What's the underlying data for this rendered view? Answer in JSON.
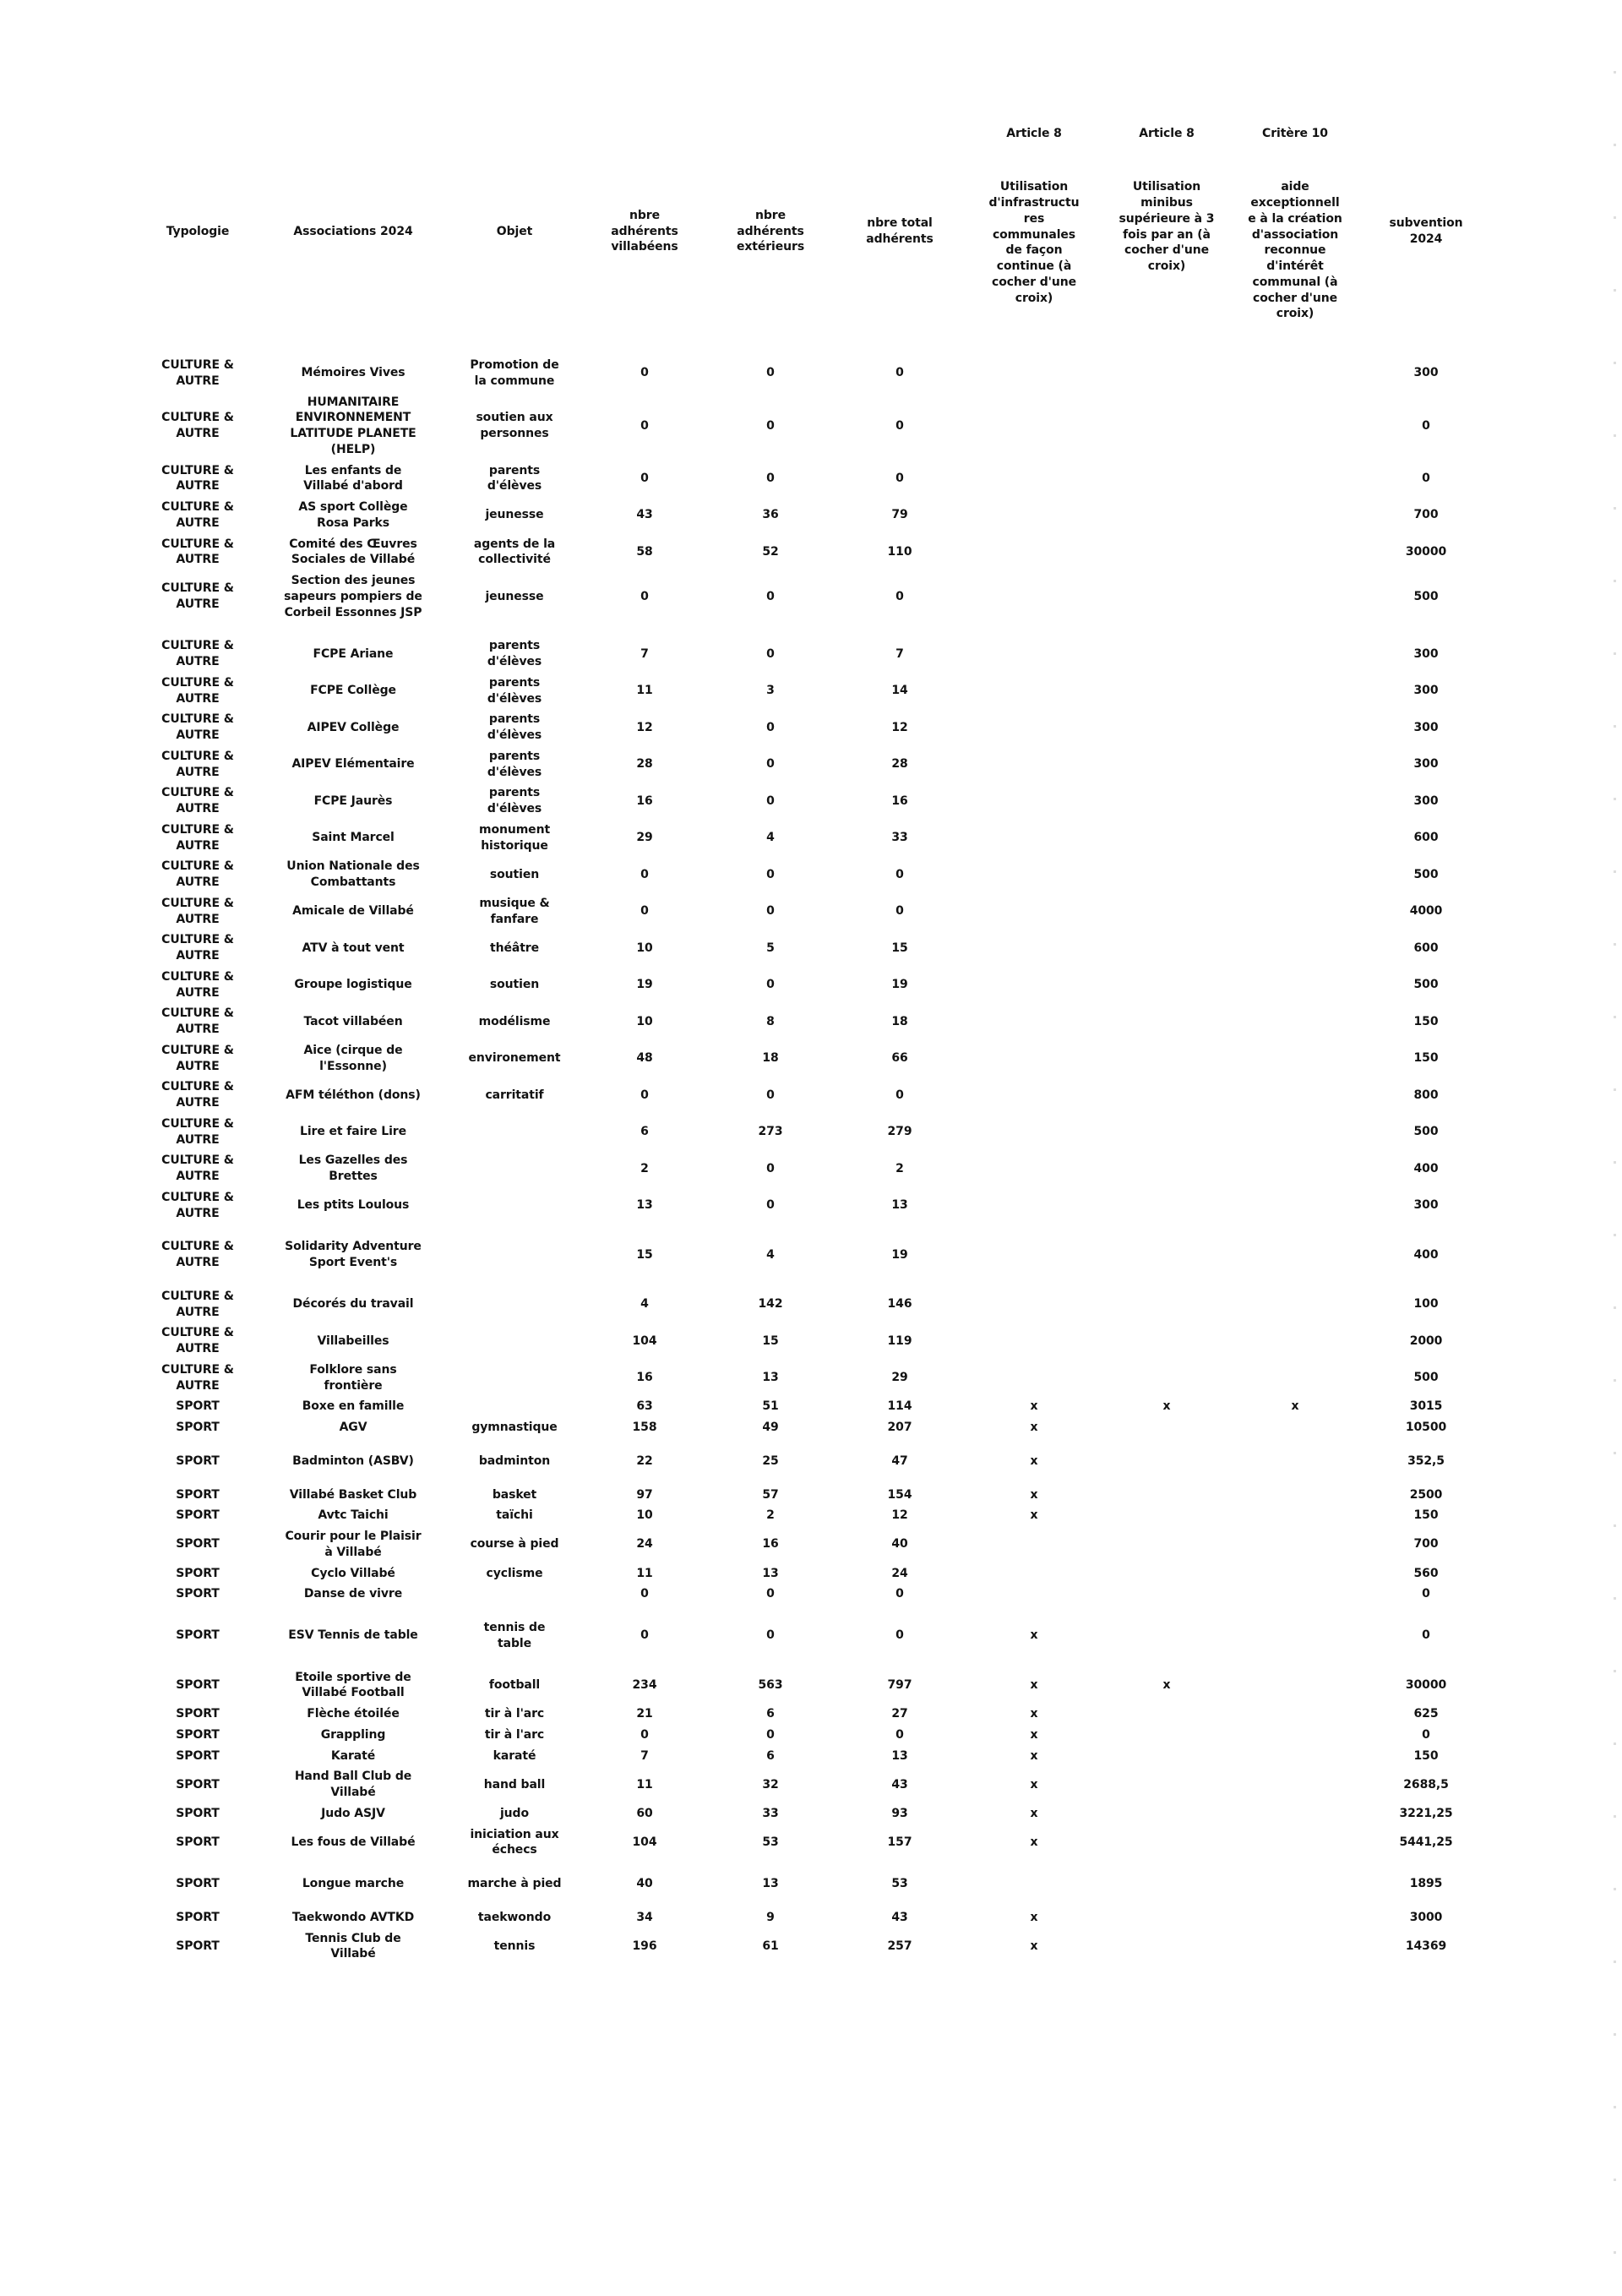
{
  "page": {
    "background": "#ffffff",
    "text_color": "#121212"
  },
  "header": {
    "tags": {
      "infra": "Article 8",
      "minibus": "Article 8",
      "critere10": "Critère 10"
    },
    "columns": {
      "typologie": "Typologie",
      "association": "Associations 2024",
      "objet": "Objet",
      "villabeens": "nbre\nadhérents\nvillabéens",
      "exterieurs": "nbre\nadhérents\nextérieurs",
      "total": "nbre total\nadhérents",
      "infra": "Utilisation\nd'infrastructu\nres\ncommunales\nde façon\ncontinue (à\ncocher d'une\ncroix)",
      "minibus": "Utilisation\nminibus\nsupérieure à 3\nfois par an (à\ncocher d'une\ncroix)",
      "critere10": "aide\nexceptionnell\ne à la création\nd'association\nreconnue\nd'intérêt\ncommunal (à\ncocher d'une\ncroix)",
      "subvention": "subvention\n2024"
    }
  },
  "rows": [
    {
      "typologie": "CULTURE &\nAUTRE",
      "association": "Mémoires Vives",
      "objet": "Promotion de\nla commune",
      "villabeens": "0",
      "exterieurs": "0",
      "total": "0",
      "infra": "",
      "minibus": "",
      "critere10": "",
      "subvention": "300"
    },
    {
      "typologie": "CULTURE &\nAUTRE",
      "association": "HUMANITAIRE\nENVIRONNEMENT\nLATITUDE PLANETE\n(HELP)",
      "objet": "soutien aux\npersonnes",
      "villabeens": "0",
      "exterieurs": "0",
      "total": "0",
      "infra": "",
      "minibus": "",
      "critere10": "",
      "subvention": "0"
    },
    {
      "typologie": "CULTURE &\nAUTRE",
      "association": "Les enfants de\nVillabé d'abord",
      "objet": "parents\nd'élèves",
      "villabeens": "0",
      "exterieurs": "0",
      "total": "0",
      "infra": "",
      "minibus": "",
      "critere10": "",
      "subvention": "0"
    },
    {
      "typologie": "CULTURE &\nAUTRE",
      "association": "AS sport Collège\nRosa Parks",
      "objet": "jeunesse",
      "villabeens": "43",
      "exterieurs": "36",
      "total": "79",
      "infra": "",
      "minibus": "",
      "critere10": "",
      "subvention": "700"
    },
    {
      "typologie": "CULTURE &\nAUTRE",
      "association": "Comité des Œuvres\nSociales de Villabé",
      "objet": "agents de la\ncollectivité",
      "villabeens": "58",
      "exterieurs": "52",
      "total": "110",
      "infra": "",
      "minibus": "",
      "critere10": "",
      "subvention": "30000"
    },
    {
      "typologie": "CULTURE &\nAUTRE",
      "association": "Section des jeunes\nsapeurs pompiers de\nCorbeil Essonnes JSP",
      "objet": "jeunesse",
      "villabeens": "0",
      "exterieurs": "0",
      "total": "0",
      "infra": "",
      "minibus": "",
      "critere10": "",
      "subvention": "500"
    },
    {
      "typologie": "CULTURE &\nAUTRE",
      "association": "FCPE Ariane",
      "objet": "parents\nd'élèves",
      "villabeens": "7",
      "exterieurs": "0",
      "total": "7",
      "infra": "",
      "minibus": "",
      "critere10": "",
      "subvention": "300",
      "gap_before": true
    },
    {
      "typologie": "CULTURE &\nAUTRE",
      "association": "FCPE Collège",
      "objet": "parents\nd'élèves",
      "villabeens": "11",
      "exterieurs": "3",
      "total": "14",
      "infra": "",
      "minibus": "",
      "critere10": "",
      "subvention": "300"
    },
    {
      "typologie": "CULTURE &\nAUTRE",
      "association": "AIPEV Collège",
      "objet": "parents\nd'élèves",
      "villabeens": "12",
      "exterieurs": "0",
      "total": "12",
      "infra": "",
      "minibus": "",
      "critere10": "",
      "subvention": "300"
    },
    {
      "typologie": "CULTURE &\nAUTRE",
      "association": "AIPEV Elémentaire",
      "objet": "parents\nd'élèves",
      "villabeens": "28",
      "exterieurs": "0",
      "total": "28",
      "infra": "",
      "minibus": "",
      "critere10": "",
      "subvention": "300"
    },
    {
      "typologie": "CULTURE &\nAUTRE",
      "association": "FCPE Jaurès",
      "objet": "parents\nd'élèves",
      "villabeens": "16",
      "exterieurs": "0",
      "total": "16",
      "infra": "",
      "minibus": "",
      "critere10": "",
      "subvention": "300"
    },
    {
      "typologie": "CULTURE &\nAUTRE",
      "association": "Saint Marcel",
      "objet": "monument\nhistorique",
      "villabeens": "29",
      "exterieurs": "4",
      "total": "33",
      "infra": "",
      "minibus": "",
      "critere10": "",
      "subvention": "600"
    },
    {
      "typologie": "CULTURE &\nAUTRE",
      "association": "Union Nationale des\nCombattants",
      "objet": "soutien",
      "villabeens": "0",
      "exterieurs": "0",
      "total": "0",
      "infra": "",
      "minibus": "",
      "critere10": "",
      "subvention": "500"
    },
    {
      "typologie": "CULTURE &\nAUTRE",
      "association": "Amicale de Villabé",
      "objet": "musique &\nfanfare",
      "villabeens": "0",
      "exterieurs": "0",
      "total": "0",
      "infra": "",
      "minibus": "",
      "critere10": "",
      "subvention": "4000"
    },
    {
      "typologie": "CULTURE &\nAUTRE",
      "association": "ATV à tout vent",
      "objet": "théâtre",
      "villabeens": "10",
      "exterieurs": "5",
      "total": "15",
      "infra": "",
      "minibus": "",
      "critere10": "",
      "subvention": "600"
    },
    {
      "typologie": "CULTURE &\nAUTRE",
      "association": "Groupe logistique",
      "objet": "soutien",
      "villabeens": "19",
      "exterieurs": "0",
      "total": "19",
      "infra": "",
      "minibus": "",
      "critere10": "",
      "subvention": "500"
    },
    {
      "typologie": "CULTURE &\nAUTRE",
      "association": "Tacot villabéen",
      "objet": "modélisme",
      "villabeens": "10",
      "exterieurs": "8",
      "total": "18",
      "infra": "",
      "minibus": "",
      "critere10": "",
      "subvention": "150"
    },
    {
      "typologie": "CULTURE &\nAUTRE",
      "association": "Aice (cirque de\nl'Essonne)",
      "objet": "environement",
      "villabeens": "48",
      "exterieurs": "18",
      "total": "66",
      "infra": "",
      "minibus": "",
      "critere10": "",
      "subvention": "150"
    },
    {
      "typologie": "CULTURE &\nAUTRE",
      "association": "AFM téléthon (dons)",
      "objet": "carritatif",
      "villabeens": "0",
      "exterieurs": "0",
      "total": "0",
      "infra": "",
      "minibus": "",
      "critere10": "",
      "subvention": "800"
    },
    {
      "typologie": "CULTURE &\nAUTRE",
      "association": "Lire et faire Lire",
      "objet": "",
      "villabeens": "6",
      "exterieurs": "273",
      "total": "279",
      "infra": "",
      "minibus": "",
      "critere10": "",
      "subvention": "500"
    },
    {
      "typologie": "CULTURE &\nAUTRE",
      "association": "Les Gazelles des\nBrettes",
      "objet": "",
      "villabeens": "2",
      "exterieurs": "0",
      "total": "2",
      "infra": "",
      "minibus": "",
      "critere10": "",
      "subvention": "400"
    },
    {
      "typologie": "CULTURE &\nAUTRE",
      "association": "Les ptits Loulous",
      "objet": "",
      "villabeens": "13",
      "exterieurs": "0",
      "total": "13",
      "infra": "",
      "minibus": "",
      "critere10": "",
      "subvention": "300"
    },
    {
      "typologie": "CULTURE &\nAUTRE",
      "association": "Solidarity Adventure\nSport Event's",
      "objet": "",
      "villabeens": "15",
      "exterieurs": "4",
      "total": "19",
      "infra": "",
      "minibus": "",
      "critere10": "",
      "subvention": "400",
      "gap_before": true
    },
    {
      "typologie": "CULTURE &\nAUTRE",
      "association": "Décorés du travail",
      "objet": "",
      "villabeens": "4",
      "exterieurs": "142",
      "total": "146",
      "infra": "",
      "minibus": "",
      "critere10": "",
      "subvention": "100",
      "gap_before": true
    },
    {
      "typologie": "CULTURE &\nAUTRE",
      "association": "Villabeilles",
      "objet": "",
      "villabeens": "104",
      "exterieurs": "15",
      "total": "119",
      "infra": "",
      "minibus": "",
      "critere10": "",
      "subvention": "2000"
    },
    {
      "typologie": "CULTURE &\nAUTRE",
      "association": "Folklore sans\nfrontière",
      "objet": "",
      "villabeens": "16",
      "exterieurs": "13",
      "total": "29",
      "infra": "",
      "minibus": "",
      "critere10": "",
      "subvention": "500"
    },
    {
      "typologie": "SPORT",
      "association": "Boxe en famille",
      "objet": "",
      "villabeens": "63",
      "exterieurs": "51",
      "total": "114",
      "infra": "x",
      "minibus": "x",
      "critere10": "x",
      "subvention": "3015"
    },
    {
      "typologie": "SPORT",
      "association": "AGV",
      "objet": "gymnastique",
      "villabeens": "158",
      "exterieurs": "49",
      "total": "207",
      "infra": "x",
      "minibus": "",
      "critere10": "",
      "subvention": "10500"
    },
    {
      "typologie": "SPORT",
      "association": "Badminton (ASBV)",
      "objet": "badminton",
      "villabeens": "22",
      "exterieurs": "25",
      "total": "47",
      "infra": "x",
      "minibus": "",
      "critere10": "",
      "subvention": "352,5",
      "gap_before": true
    },
    {
      "typologie": "SPORT",
      "association": "Villabé Basket Club",
      "objet": "basket",
      "villabeens": "97",
      "exterieurs": "57",
      "total": "154",
      "infra": "x",
      "minibus": "",
      "critere10": "",
      "subvention": "2500",
      "gap_before": true
    },
    {
      "typologie": "SPORT",
      "association": "Avtc Taichi",
      "objet": "taïchi",
      "villabeens": "10",
      "exterieurs": "2",
      "total": "12",
      "infra": "x",
      "minibus": "",
      "critere10": "",
      "subvention": "150"
    },
    {
      "typologie": "SPORT",
      "association": "Courir pour le Plaisir\nà Villabé",
      "objet": "course à pied",
      "villabeens": "24",
      "exterieurs": "16",
      "total": "40",
      "infra": "",
      "minibus": "",
      "critere10": "",
      "subvention": "700"
    },
    {
      "typologie": "SPORT",
      "association": "Cyclo Villabé",
      "objet": "cyclisme",
      "villabeens": "11",
      "exterieurs": "13",
      "total": "24",
      "infra": "",
      "minibus": "",
      "critere10": "",
      "subvention": "560"
    },
    {
      "typologie": "SPORT",
      "association": "Danse de vivre",
      "objet": "",
      "villabeens": "0",
      "exterieurs": "0",
      "total": "0",
      "infra": "",
      "minibus": "",
      "critere10": "",
      "subvention": "0"
    },
    {
      "typologie": "SPORT",
      "association": "ESV Tennis de table",
      "objet": "tennis de\ntable",
      "villabeens": "0",
      "exterieurs": "0",
      "total": "0",
      "infra": "x",
      "minibus": "",
      "critere10": "",
      "subvention": "0",
      "gap_before": true
    },
    {
      "typologie": "SPORT",
      "association": "Etoile sportive de\nVillabé Football",
      "objet": "football",
      "villabeens": "234",
      "exterieurs": "563",
      "total": "797",
      "infra": "x",
      "minibus": "x",
      "critere10": "",
      "subvention": "30000",
      "gap_before": true
    },
    {
      "typologie": "SPORT",
      "association": "Flèche étoilée",
      "objet": "tir à l'arc",
      "villabeens": "21",
      "exterieurs": "6",
      "total": "27",
      "infra": "x",
      "minibus": "",
      "critere10": "",
      "subvention": "625"
    },
    {
      "typologie": "SPORT",
      "association": "Grappling",
      "objet": "tir à l'arc",
      "villabeens": "0",
      "exterieurs": "0",
      "total": "0",
      "infra": "x",
      "minibus": "",
      "critere10": "",
      "subvention": "0"
    },
    {
      "typologie": "SPORT",
      "association": "Karaté",
      "objet": "karaté",
      "villabeens": "7",
      "exterieurs": "6",
      "total": "13",
      "infra": "x",
      "minibus": "",
      "critere10": "",
      "subvention": "150"
    },
    {
      "typologie": "SPORT",
      "association": "Hand Ball Club de\nVillabé",
      "objet": "hand ball",
      "villabeens": "11",
      "exterieurs": "32",
      "total": "43",
      "infra": "x",
      "minibus": "",
      "critere10": "",
      "subvention": "2688,5"
    },
    {
      "typologie": "SPORT",
      "association": "Judo ASJV",
      "objet": "judo",
      "villabeens": "60",
      "exterieurs": "33",
      "total": "93",
      "infra": "x",
      "minibus": "",
      "critere10": "",
      "subvention": "3221,25"
    },
    {
      "typologie": "SPORT",
      "association": "Les fous de Villabé",
      "objet": "iniciation aux\néchecs",
      "villabeens": "104",
      "exterieurs": "53",
      "total": "157",
      "infra": "x",
      "minibus": "",
      "critere10": "",
      "subvention": "5441,25"
    },
    {
      "typologie": "SPORT",
      "association": "Longue marche",
      "objet": "marche à pied",
      "villabeens": "40",
      "exterieurs": "13",
      "total": "53",
      "infra": "",
      "minibus": "",
      "critere10": "",
      "subvention": "1895",
      "gap_before": true
    },
    {
      "typologie": "SPORT",
      "association": "Taekwondo AVTKD",
      "objet": "taekwondo",
      "villabeens": "34",
      "exterieurs": "9",
      "total": "43",
      "infra": "x",
      "minibus": "",
      "critere10": "",
      "subvention": "3000",
      "gap_before": true
    },
    {
      "typologie": "SPORT",
      "association": "Tennis Club de\nVillabé",
      "objet": "tennis",
      "villabeens": "196",
      "exterieurs": "61",
      "total": "257",
      "infra": "x",
      "minibus": "",
      "critere10": "",
      "subvention": "14369"
    }
  ]
}
